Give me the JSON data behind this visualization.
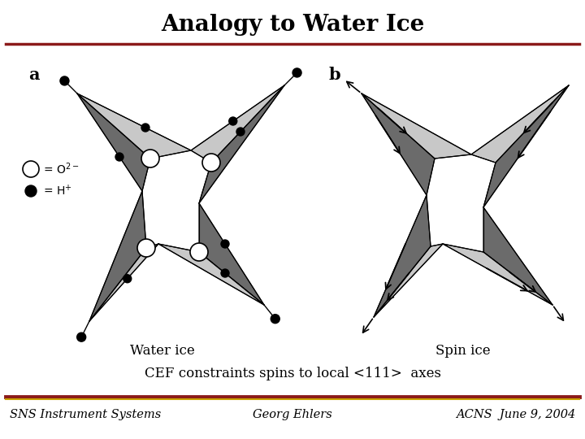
{
  "title": "Analogy to Water Ice",
  "title_fontsize": 20,
  "title_fontweight": "bold",
  "title_color": "#000000",
  "bg_color": "#ffffff",
  "top_line_color": "#8B1A1A",
  "subtitle_text": "CEF constraints spins to local <111>  axes",
  "subtitle_fontsize": 12,
  "footer_left": "SNS Instrument Systems",
  "footer_center": "Georg Ehlers",
  "footer_right": "ACNS  June 9, 2004",
  "footer_fontsize": 10.5,
  "footer_line_color1": "#8B1A1A",
  "footer_line_color2": "#C8A000",
  "label_a": "a",
  "label_b": "b",
  "water_ice_label": "Water ice",
  "spin_ice_label": "Spin ice",
  "dark_gray": "#6B6B6B",
  "mid_gray": "#909090",
  "light_gray": "#C8C8C8",
  "very_light_gray": "#E0E0E0"
}
